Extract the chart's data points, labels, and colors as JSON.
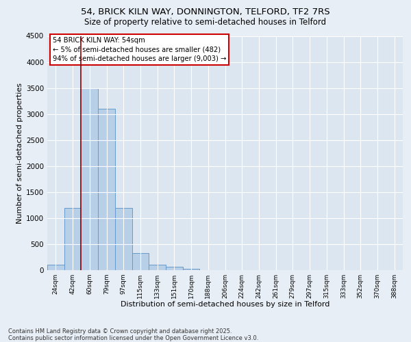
{
  "title_line1": "54, BRICK KILN WAY, DONNINGTON, TELFORD, TF2 7RS",
  "title_line2": "Size of property relative to semi-detached houses in Telford",
  "xlabel": "Distribution of semi-detached houses by size in Telford",
  "ylabel": "Number of semi-detached properties",
  "categories": [
    "24sqm",
    "42sqm",
    "60sqm",
    "79sqm",
    "97sqm",
    "115sqm",
    "133sqm",
    "151sqm",
    "170sqm",
    "188sqm",
    "206sqm",
    "224sqm",
    "242sqm",
    "261sqm",
    "279sqm",
    "297sqm",
    "315sqm",
    "333sqm",
    "352sqm",
    "370sqm",
    "388sqm"
  ],
  "values": [
    100,
    1200,
    3500,
    3100,
    1200,
    330,
    110,
    60,
    20,
    5,
    2,
    1,
    0,
    0,
    0,
    0,
    0,
    0,
    0,
    0,
    0
  ],
  "bar_color": "#b8cfe8",
  "bar_edgecolor": "#6699cc",
  "marker_color": "#8b0000",
  "marker_index": 1.5,
  "annotation_text": "54 BRICK KILN WAY: 54sqm\n← 5% of semi-detached houses are smaller (482)\n94% of semi-detached houses are larger (9,003) →",
  "annotation_box_facecolor": "#ffffff",
  "annotation_box_edgecolor": "#cc0000",
  "ylim": [
    0,
    4500
  ],
  "yticks": [
    0,
    500,
    1000,
    1500,
    2000,
    2500,
    3000,
    3500,
    4000,
    4500
  ],
  "footer_text": "Contains HM Land Registry data © Crown copyright and database right 2025.\nContains public sector information licensed under the Open Government Licence v3.0.",
  "fig_facecolor": "#e8eef5",
  "ax_facecolor": "#dce6f0"
}
